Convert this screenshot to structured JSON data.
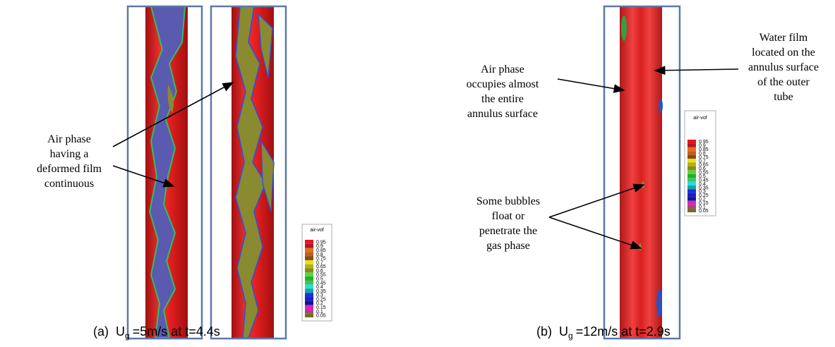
{
  "panel_a": {
    "annotation": [
      "Air phase",
      "having a",
      "deformed film",
      "continuous"
    ],
    "legend": {
      "title": "air-vof",
      "labels": [
        0.95,
        0.9,
        0.85,
        0.8,
        0.75,
        0.7,
        0.65,
        0.6,
        0.55,
        0.5,
        0.45,
        0.4,
        0.35,
        0.3,
        0.25,
        0.2,
        0.15,
        0.1,
        0.05
      ]
    },
    "caption": {
      "label": "(a)",
      "symbol": "U",
      "subscript": "g",
      "text": "=5m/s at t=4.4s"
    }
  },
  "panel_b": {
    "annotations": [
      [
        "Air phase",
        "occupies almost",
        "the entire",
        "annulus surface"
      ],
      [
        "Water film",
        "located on the",
        "annulus surface",
        "of the outer",
        "tube"
      ],
      [
        "Some bubbles",
        "float or",
        "penetrate the",
        "gas phase"
      ]
    ],
    "legend": {
      "title": "air-vof",
      "labels": [
        0.95,
        0.9,
        0.85,
        0.8,
        0.75,
        0.7,
        0.65,
        0.6,
        0.55,
        0.5,
        0.45,
        0.4,
        0.35,
        0.3,
        0.25,
        0.2,
        0.15,
        0.1,
        0.05
      ]
    },
    "caption": {
      "label": "(b)",
      "symbol": "U",
      "subscript": "g",
      "text": "=12m/s at t=2.9s"
    }
  },
  "legend_colors": [
    "#e8141b",
    "#b2152a",
    "#e0701c",
    "#c0601a",
    "#8a4a12",
    "#e8e01a",
    "#b0b020",
    "#8a8a1a",
    "#60d040",
    "#20b020",
    "#40c060",
    "#20e0e0",
    "#20a0a0",
    "#1a30e0",
    "#1a20c0",
    "#101890",
    "#e020c0",
    "#b04080",
    "#707020"
  ]
}
